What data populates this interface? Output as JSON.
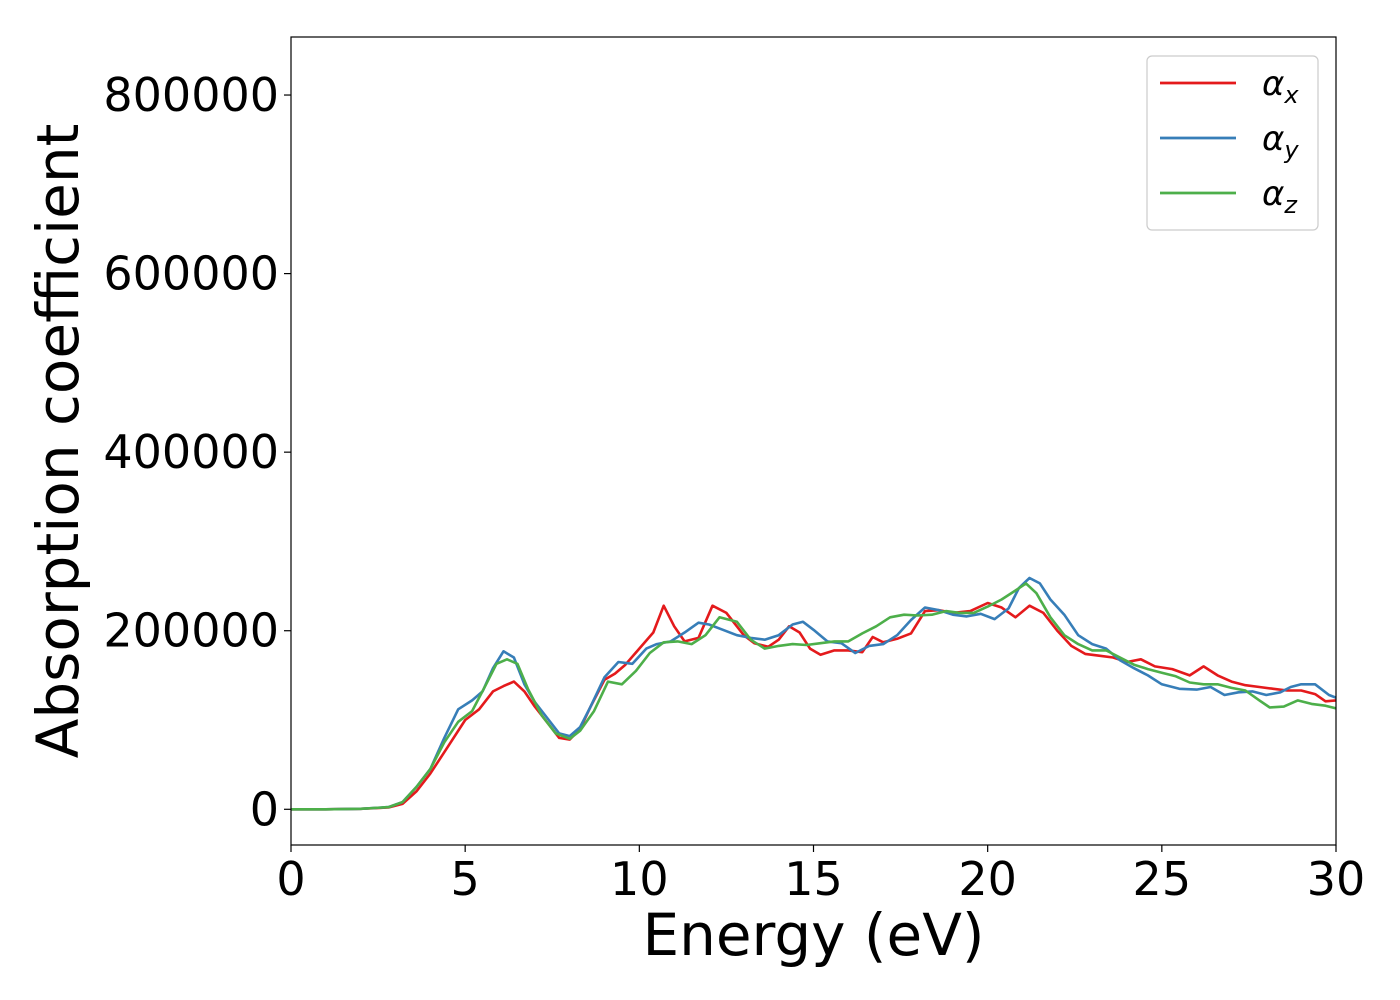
{
  "chart_data": {
    "type": "line",
    "title": "",
    "xlabel": "Energy (eV)",
    "ylabel": "Absorption coefficient",
    "xlim": [
      0,
      30
    ],
    "ylim": [
      -40000,
      865000
    ],
    "xticks": [
      "0",
      "5",
      "10",
      "15",
      "20",
      "25",
      "30"
    ],
    "yticks": [
      "0",
      "200000",
      "400000",
      "600000",
      "800000"
    ],
    "grid": false,
    "legend": "top-right",
    "series": [
      {
        "name": "αx",
        "symbol": "α",
        "subscript": "x",
        "color": "#e41a1c",
        "points": [
          [
            0,
            0
          ],
          [
            1,
            0
          ],
          [
            2,
            500
          ],
          [
            2.8,
            2000
          ],
          [
            3.2,
            6000
          ],
          [
            3.6,
            20000
          ],
          [
            4,
            40000
          ],
          [
            4.5,
            70000
          ],
          [
            5,
            100000
          ],
          [
            5.4,
            112000
          ],
          [
            5.8,
            132000
          ],
          [
            6.1,
            138000
          ],
          [
            6.4,
            143000
          ],
          [
            6.7,
            132000
          ],
          [
            7,
            115000
          ],
          [
            7.4,
            95000
          ],
          [
            7.7,
            80000
          ],
          [
            8,
            78000
          ],
          [
            8.3,
            90000
          ],
          [
            8.6,
            115000
          ],
          [
            9,
            145000
          ],
          [
            9.3,
            152000
          ],
          [
            9.6,
            162000
          ],
          [
            10,
            180000
          ],
          [
            10.4,
            198000
          ],
          [
            10.7,
            228000
          ],
          [
            11,
            205000
          ],
          [
            11.3,
            188000
          ],
          [
            11.7,
            192000
          ],
          [
            12.1,
            228000
          ],
          [
            12.5,
            220000
          ],
          [
            13,
            195000
          ],
          [
            13.3,
            186000
          ],
          [
            13.7,
            182000
          ],
          [
            14,
            190000
          ],
          [
            14.3,
            205000
          ],
          [
            14.6,
            198000
          ],
          [
            14.9,
            180000
          ],
          [
            15.2,
            173000
          ],
          [
            15.6,
            178000
          ],
          [
            16,
            178000
          ],
          [
            16.4,
            176000
          ],
          [
            16.7,
            193000
          ],
          [
            17,
            187000
          ],
          [
            17.4,
            191000
          ],
          [
            17.8,
            197000
          ],
          [
            18.2,
            222000
          ],
          [
            18.6,
            223000
          ],
          [
            19,
            220000
          ],
          [
            19.5,
            222000
          ],
          [
            20,
            231000
          ],
          [
            20.4,
            226000
          ],
          [
            20.8,
            215000
          ],
          [
            21.2,
            228000
          ],
          [
            21.6,
            220000
          ],
          [
            22,
            200000
          ],
          [
            22.4,
            183000
          ],
          [
            22.8,
            174000
          ],
          [
            23.2,
            172000
          ],
          [
            23.6,
            170000
          ],
          [
            24,
            165000
          ],
          [
            24.4,
            168000
          ],
          [
            24.8,
            160000
          ],
          [
            25.3,
            157000
          ],
          [
            25.8,
            150000
          ],
          [
            26.2,
            160000
          ],
          [
            26.6,
            150000
          ],
          [
            27,
            143000
          ],
          [
            27.4,
            139000
          ],
          [
            27.8,
            137000
          ],
          [
            28.2,
            135000
          ],
          [
            28.6,
            133000
          ],
          [
            29,
            133000
          ],
          [
            29.4,
            129000
          ],
          [
            29.7,
            121000
          ],
          [
            30,
            122000
          ]
        ]
      },
      {
        "name": "αy",
        "symbol": "α",
        "subscript": "y",
        "color": "#377eb8",
        "points": [
          [
            0,
            0
          ],
          [
            1,
            0
          ],
          [
            2,
            500
          ],
          [
            2.8,
            2500
          ],
          [
            3.2,
            8000
          ],
          [
            3.6,
            25000
          ],
          [
            4,
            45000
          ],
          [
            4.4,
            80000
          ],
          [
            4.8,
            112000
          ],
          [
            5.2,
            122000
          ],
          [
            5.5,
            132000
          ],
          [
            5.8,
            158000
          ],
          [
            6.1,
            177000
          ],
          [
            6.4,
            170000
          ],
          [
            6.7,
            140000
          ],
          [
            7,
            120000
          ],
          [
            7.4,
            100000
          ],
          [
            7.7,
            85000
          ],
          [
            8,
            82000
          ],
          [
            8.3,
            92000
          ],
          [
            8.6,
            115000
          ],
          [
            9,
            148000
          ],
          [
            9.4,
            165000
          ],
          [
            9.8,
            163000
          ],
          [
            10.2,
            180000
          ],
          [
            10.5,
            185000
          ],
          [
            10.9,
            188000
          ],
          [
            11.3,
            198000
          ],
          [
            11.7,
            209000
          ],
          [
            12,
            207000
          ],
          [
            12.4,
            201000
          ],
          [
            12.8,
            195000
          ],
          [
            13.2,
            192000
          ],
          [
            13.6,
            190000
          ],
          [
            14,
            195000
          ],
          [
            14.4,
            207000
          ],
          [
            14.7,
            210000
          ],
          [
            15,
            201000
          ],
          [
            15.4,
            188000
          ],
          [
            15.8,
            186000
          ],
          [
            16.2,
            175000
          ],
          [
            16.6,
            183000
          ],
          [
            17,
            185000
          ],
          [
            17.4,
            195000
          ],
          [
            17.8,
            212000
          ],
          [
            18.2,
            226000
          ],
          [
            18.6,
            223000
          ],
          [
            19,
            218000
          ],
          [
            19.4,
            216000
          ],
          [
            19.8,
            219000
          ],
          [
            20.2,
            213000
          ],
          [
            20.6,
            225000
          ],
          [
            20.9,
            248000
          ],
          [
            21.2,
            259000
          ],
          [
            21.5,
            253000
          ],
          [
            21.8,
            235000
          ],
          [
            22.2,
            218000
          ],
          [
            22.6,
            195000
          ],
          [
            23,
            185000
          ],
          [
            23.4,
            180000
          ],
          [
            23.8,
            167000
          ],
          [
            24.2,
            158000
          ],
          [
            24.6,
            150000
          ],
          [
            25,
            140000
          ],
          [
            25.5,
            135000
          ],
          [
            26,
            134000
          ],
          [
            26.4,
            137000
          ],
          [
            26.8,
            128000
          ],
          [
            27.2,
            131000
          ],
          [
            27.6,
            132000
          ],
          [
            28,
            128000
          ],
          [
            28.4,
            131000
          ],
          [
            28.7,
            137000
          ],
          [
            29,
            140000
          ],
          [
            29.4,
            140000
          ],
          [
            29.8,
            128000
          ],
          [
            30,
            125000
          ]
        ]
      },
      {
        "name": "αz",
        "symbol": "α",
        "subscript": "z",
        "color": "#4daf4a",
        "points": [
          [
            0,
            0
          ],
          [
            1,
            0
          ],
          [
            2,
            500
          ],
          [
            2.8,
            2500
          ],
          [
            3.2,
            8000
          ],
          [
            3.6,
            25000
          ],
          [
            4,
            45000
          ],
          [
            4.4,
            75000
          ],
          [
            4.8,
            98000
          ],
          [
            5.2,
            110000
          ],
          [
            5.6,
            140000
          ],
          [
            5.9,
            163000
          ],
          [
            6.2,
            168000
          ],
          [
            6.5,
            163000
          ],
          [
            6.8,
            135000
          ],
          [
            7.2,
            105000
          ],
          [
            7.6,
            85000
          ],
          [
            8,
            79000
          ],
          [
            8.3,
            88000
          ],
          [
            8.7,
            110000
          ],
          [
            9.1,
            143000
          ],
          [
            9.5,
            140000
          ],
          [
            9.9,
            155000
          ],
          [
            10.3,
            175000
          ],
          [
            10.7,
            187000
          ],
          [
            11.1,
            188000
          ],
          [
            11.5,
            185000
          ],
          [
            11.9,
            195000
          ],
          [
            12.3,
            215000
          ],
          [
            12.8,
            210000
          ],
          [
            13.2,
            190000
          ],
          [
            13.6,
            180000
          ],
          [
            14,
            183000
          ],
          [
            14.4,
            185000
          ],
          [
            14.8,
            184000
          ],
          [
            15.2,
            186000
          ],
          [
            15.6,
            188000
          ],
          [
            16,
            188000
          ],
          [
            16.4,
            197000
          ],
          [
            16.8,
            205000
          ],
          [
            17.2,
            215000
          ],
          [
            17.6,
            218000
          ],
          [
            18,
            217000
          ],
          [
            18.4,
            218000
          ],
          [
            18.8,
            222000
          ],
          [
            19.2,
            220000
          ],
          [
            19.6,
            220000
          ],
          [
            20,
            227000
          ],
          [
            20.4,
            235000
          ],
          [
            20.8,
            245000
          ],
          [
            21.1,
            253000
          ],
          [
            21.4,
            242000
          ],
          [
            21.8,
            215000
          ],
          [
            22.2,
            195000
          ],
          [
            22.6,
            185000
          ],
          [
            23,
            178000
          ],
          [
            23.4,
            178000
          ],
          [
            23.8,
            170000
          ],
          [
            24.2,
            162000
          ],
          [
            24.6,
            157000
          ],
          [
            25,
            153000
          ],
          [
            25.4,
            149000
          ],
          [
            25.8,
            142000
          ],
          [
            26.2,
            140000
          ],
          [
            26.6,
            140000
          ],
          [
            27,
            136000
          ],
          [
            27.4,
            133000
          ],
          [
            27.8,
            122000
          ],
          [
            28.1,
            114000
          ],
          [
            28.5,
            115000
          ],
          [
            28.9,
            122000
          ],
          [
            29.3,
            118000
          ],
          [
            29.7,
            116000
          ],
          [
            30,
            113000
          ]
        ]
      }
    ]
  }
}
